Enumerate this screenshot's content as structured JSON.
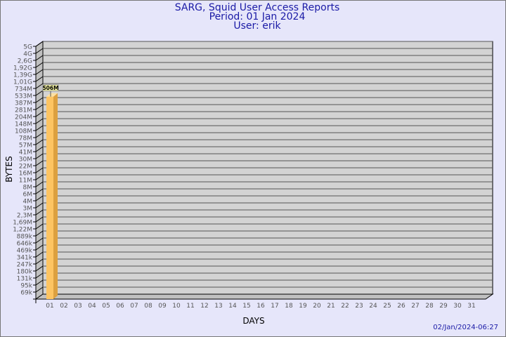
{
  "chart_data": {
    "type": "bar",
    "title": "SARG, Squid User Access Reports",
    "subtitle": [
      "Period: 01 Jan 2024",
      "User: erik"
    ],
    "xlabel": "DAYS",
    "ylabel": "BYTES",
    "categories": [
      "01",
      "02",
      "03",
      "04",
      "05",
      "06",
      "07",
      "08",
      "09",
      "10",
      "11",
      "12",
      "13",
      "14",
      "15",
      "16",
      "17",
      "18",
      "19",
      "20",
      "21",
      "22",
      "23",
      "24",
      "25",
      "26",
      "27",
      "28",
      "29",
      "30",
      "31"
    ],
    "values": [
      506000000,
      0,
      0,
      0,
      0,
      0,
      0,
      0,
      0,
      0,
      0,
      0,
      0,
      0,
      0,
      0,
      0,
      0,
      0,
      0,
      0,
      0,
      0,
      0,
      0,
      0,
      0,
      0,
      0,
      0,
      0
    ],
    "data_labels": [
      "506M"
    ],
    "y_ticks": [
      "5G",
      "4G",
      "2,6G",
      "1,92G",
      "1,39G",
      "1,01G",
      "734M",
      "533M",
      "387M",
      "281M",
      "204M",
      "148M",
      "108M",
      "78M",
      "57M",
      "41M",
      "30M",
      "22M",
      "16M",
      "11M",
      "8M",
      "6M",
      "4M",
      "3M",
      "2,3M",
      "1,69M",
      "1,22M",
      "889k",
      "646k",
      "469k",
      "341k",
      "247k",
      "180k",
      "131k",
      "95k",
      "69k"
    ],
    "y_scale": "log",
    "grid": true,
    "colors": {
      "bar": "#fdc462",
      "bar_side": "#dca040",
      "plot": "#d3d3d3",
      "text": "#1a1aa6"
    }
  },
  "footer": "02/Jan/2024-06:27"
}
